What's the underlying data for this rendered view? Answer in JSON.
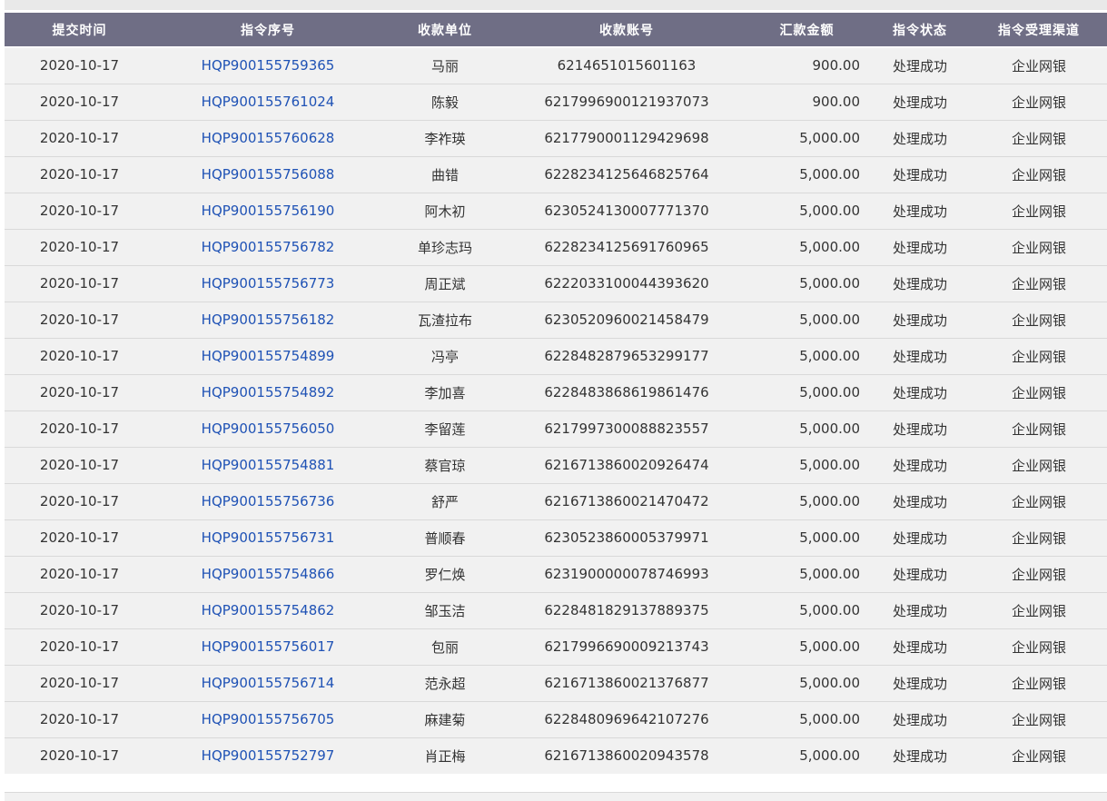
{
  "colors": {
    "header_bg": "#6f6e85",
    "header_text": "#ffffff",
    "row_bg": "#f1f1f1",
    "divider": "#d9d9d9",
    "link_blue": "#1f52b5",
    "body_text": "#333333",
    "top_strip": "#e9e9e9"
  },
  "table": {
    "columns": [
      {
        "key": "submit-time",
        "label": "提交时间"
      },
      {
        "key": "instruction-no",
        "label": "指令序号"
      },
      {
        "key": "payee-name",
        "label": "收款单位"
      },
      {
        "key": "payee-account",
        "label": "收款账号"
      },
      {
        "key": "amount",
        "label": "汇款金额"
      },
      {
        "key": "status",
        "label": "指令状态"
      },
      {
        "key": "channel",
        "label": "指令受理渠道"
      }
    ],
    "rows": [
      {
        "submit_time": "2020-10-17",
        "instruction_no": "HQP900155759365",
        "payee_name": "马丽",
        "payee_account": "6214651015601163",
        "amount": "900.00",
        "status": "处理成功",
        "channel": "企业网银"
      },
      {
        "submit_time": "2020-10-17",
        "instruction_no": "HQP900155761024",
        "payee_name": "陈毅",
        "payee_account": "6217996900121937073",
        "amount": "900.00",
        "status": "处理成功",
        "channel": "企业网银"
      },
      {
        "submit_time": "2020-10-17",
        "instruction_no": "HQP900155760628",
        "payee_name": "李祚瑛",
        "payee_account": "6217790001129429698",
        "amount": "5,000.00",
        "status": "处理成功",
        "channel": "企业网银"
      },
      {
        "submit_time": "2020-10-17",
        "instruction_no": "HQP900155756088",
        "payee_name": "曲错",
        "payee_account": "6228234125646825764",
        "amount": "5,000.00",
        "status": "处理成功",
        "channel": "企业网银"
      },
      {
        "submit_time": "2020-10-17",
        "instruction_no": "HQP900155756190",
        "payee_name": "阿木初",
        "payee_account": "6230524130007771370",
        "amount": "5,000.00",
        "status": "处理成功",
        "channel": "企业网银"
      },
      {
        "submit_time": "2020-10-17",
        "instruction_no": "HQP900155756782",
        "payee_name": "单珍志玛",
        "payee_account": "6228234125691760965",
        "amount": "5,000.00",
        "status": "处理成功",
        "channel": "企业网银"
      },
      {
        "submit_time": "2020-10-17",
        "instruction_no": "HQP900155756773",
        "payee_name": "周正斌",
        "payee_account": "6222033100044393620",
        "amount": "5,000.00",
        "status": "处理成功",
        "channel": "企业网银"
      },
      {
        "submit_time": "2020-10-17",
        "instruction_no": "HQP900155756182",
        "payee_name": "瓦渣拉布",
        "payee_account": "6230520960021458479",
        "amount": "5,000.00",
        "status": "处理成功",
        "channel": "企业网银"
      },
      {
        "submit_time": "2020-10-17",
        "instruction_no": "HQP900155754899",
        "payee_name": "冯亭",
        "payee_account": "6228482879653299177",
        "amount": "5,000.00",
        "status": "处理成功",
        "channel": "企业网银"
      },
      {
        "submit_time": "2020-10-17",
        "instruction_no": "HQP900155754892",
        "payee_name": "李加喜",
        "payee_account": "6228483868619861476",
        "amount": "5,000.00",
        "status": "处理成功",
        "channel": "企业网银"
      },
      {
        "submit_time": "2020-10-17",
        "instruction_no": "HQP900155756050",
        "payee_name": "李留莲",
        "payee_account": "6217997300088823557",
        "amount": "5,000.00",
        "status": "处理成功",
        "channel": "企业网银"
      },
      {
        "submit_time": "2020-10-17",
        "instruction_no": "HQP900155754881",
        "payee_name": "蔡官琼",
        "payee_account": "6216713860020926474",
        "amount": "5,000.00",
        "status": "处理成功",
        "channel": "企业网银"
      },
      {
        "submit_time": "2020-10-17",
        "instruction_no": "HQP900155756736",
        "payee_name": "舒严",
        "payee_account": "6216713860021470472",
        "amount": "5,000.00",
        "status": "处理成功",
        "channel": "企业网银"
      },
      {
        "submit_time": "2020-10-17",
        "instruction_no": "HQP900155756731",
        "payee_name": "普顺春",
        "payee_account": "6230523860005379971",
        "amount": "5,000.00",
        "status": "处理成功",
        "channel": "企业网银"
      },
      {
        "submit_time": "2020-10-17",
        "instruction_no": "HQP900155754866",
        "payee_name": "罗仁焕",
        "payee_account": "6231900000078746993",
        "amount": "5,000.00",
        "status": "处理成功",
        "channel": "企业网银"
      },
      {
        "submit_time": "2020-10-17",
        "instruction_no": "HQP900155754862",
        "payee_name": "邹玉洁",
        "payee_account": "6228481829137889375",
        "amount": "5,000.00",
        "status": "处理成功",
        "channel": "企业网银"
      },
      {
        "submit_time": "2020-10-17",
        "instruction_no": "HQP900155756017",
        "payee_name": "包丽",
        "payee_account": "6217996690009213743",
        "amount": "5,000.00",
        "status": "处理成功",
        "channel": "企业网银"
      },
      {
        "submit_time": "2020-10-17",
        "instruction_no": "HQP900155756714",
        "payee_name": "范永超",
        "payee_account": "6216713860021376877",
        "amount": "5,000.00",
        "status": "处理成功",
        "channel": "企业网银"
      },
      {
        "submit_time": "2020-10-17",
        "instruction_no": "HQP900155756705",
        "payee_name": "麻建菊",
        "payee_account": "6228480969642107276",
        "amount": "5,000.00",
        "status": "处理成功",
        "channel": "企业网银"
      },
      {
        "submit_time": "2020-10-17",
        "instruction_no": "HQP900155752797",
        "payee_name": "肖正梅",
        "payee_account": "6216713860020943578",
        "amount": "5,000.00",
        "status": "处理成功",
        "channel": "企业网银"
      }
    ]
  }
}
